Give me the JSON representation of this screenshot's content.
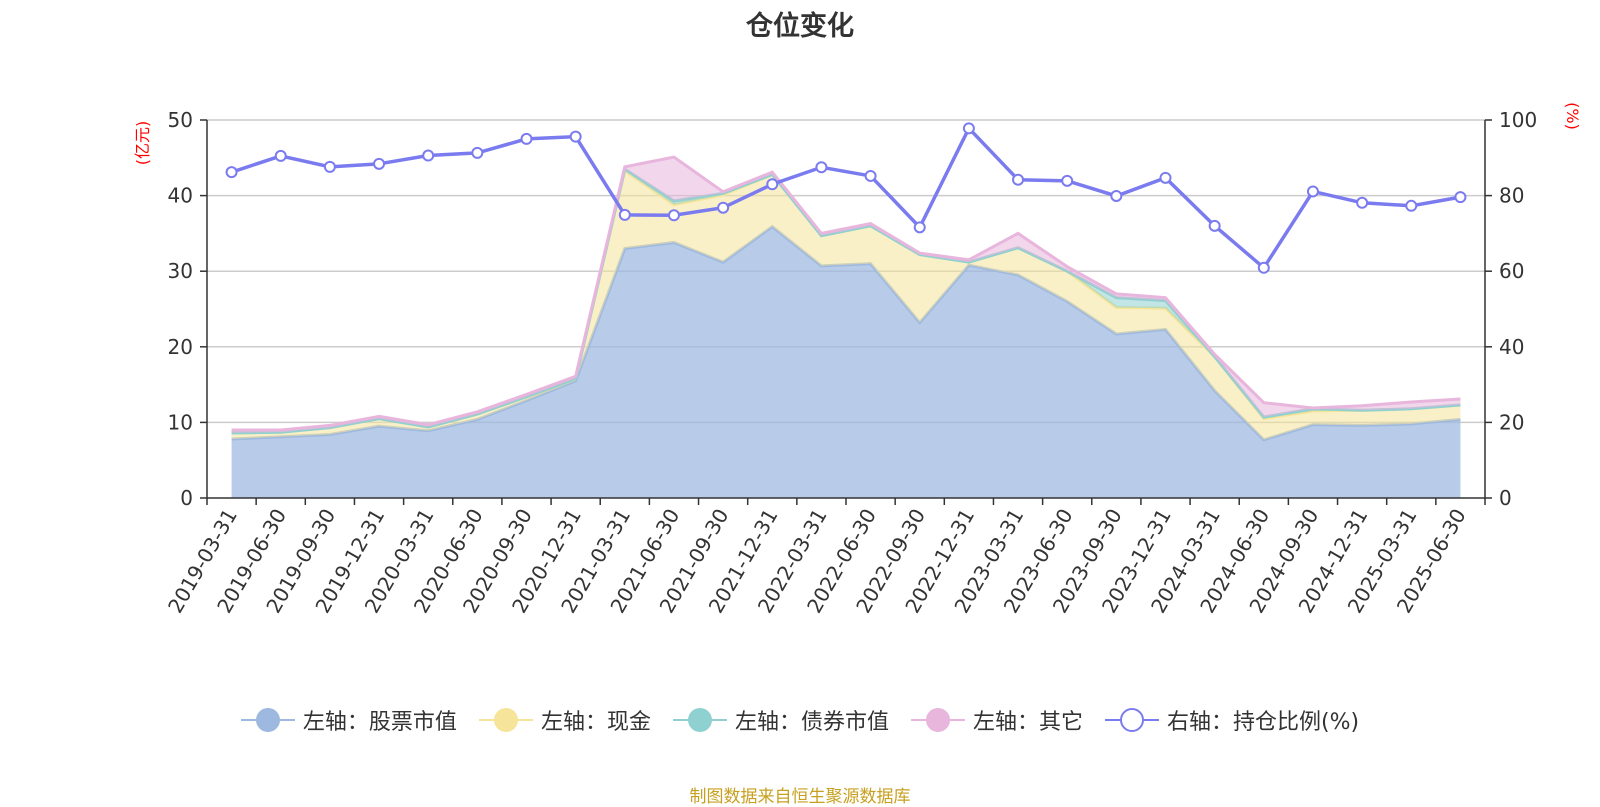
{
  "chart_data": {
    "type": "area",
    "title": "仓位变化",
    "left_axis_unit": "(亿元)",
    "right_axis_unit": "(%)",
    "left_ylim": [
      0,
      50
    ],
    "left_ticks": [
      0,
      10,
      20,
      30,
      40,
      50
    ],
    "right_ylim": [
      0,
      100
    ],
    "right_ticks": [
      0,
      20,
      40,
      60,
      80,
      100
    ],
    "grid": true,
    "legend_position": "bottom",
    "categories": [
      "2019-03-31",
      "2019-06-30",
      "2019-09-30",
      "2019-12-31",
      "2020-03-31",
      "2020-06-30",
      "2020-09-30",
      "2020-12-31",
      "2021-03-31",
      "2021-06-30",
      "2021-09-30",
      "2021-12-31",
      "2022-03-31",
      "2022-06-30",
      "2022-09-30",
      "2022-12-31",
      "2023-03-31",
      "2023-06-30",
      "2023-09-30",
      "2023-12-31",
      "2024-03-31",
      "2024-06-30",
      "2024-09-30",
      "2024-12-31",
      "2025-03-31",
      "2025-06-30"
    ],
    "series": [
      {
        "name": "左轴：股票市值",
        "axis": "left",
        "kind": "stacked-area",
        "color": "#9db9e0",
        "values": [
          7.8,
          8.1,
          8.4,
          9.5,
          8.9,
          10.4,
          12.9,
          15.5,
          33.0,
          33.8,
          31.2,
          35.9,
          30.7,
          31.0,
          23.2,
          30.8,
          29.5,
          26.0,
          21.7,
          22.3,
          14.2,
          7.7,
          9.7,
          9.6,
          9.8,
          10.4
        ]
      },
      {
        "name": "左轴：现金",
        "axis": "left",
        "kind": "stacked-area",
        "color": "#f5e49a",
        "values": [
          0.8,
          0.6,
          0.9,
          1.0,
          0.5,
          0.7,
          0.5,
          0.3,
          10.3,
          5.0,
          8.9,
          6.9,
          4.0,
          5.0,
          9.0,
          0.4,
          3.6,
          4.0,
          3.5,
          2.8,
          4.5,
          2.8,
          1.8,
          2.0,
          2.0,
          1.9
        ]
      },
      {
        "name": "左轴：债券市值",
        "axis": "left",
        "kind": "stacked-area",
        "color": "#8fd1d0",
        "values": [
          0,
          0,
          0,
          0,
          0,
          0,
          0,
          0,
          0.2,
          0.5,
          0.2,
          0,
          0,
          0,
          0,
          0,
          0,
          0,
          1.3,
          1.0,
          0,
          0.2,
          0.3,
          0,
          0,
          0
        ]
      },
      {
        "name": "左轴：其它",
        "axis": "left",
        "kind": "stacked-area",
        "color": "#e8b5dc",
        "values": [
          0.4,
          0.3,
          0.3,
          0.3,
          0.3,
          0.3,
          0.3,
          0.3,
          0.3,
          5.8,
          0.2,
          0.3,
          0.3,
          0.3,
          0.2,
          0.3,
          1.9,
          0.6,
          0.5,
          0.4,
          0.3,
          1.9,
          0.1,
          0.6,
          0.9,
          0.8
        ]
      },
      {
        "name": "右轴：持仓比例(%)",
        "axis": "right",
        "kind": "line",
        "color": "#7b7bf0",
        "values": [
          86.2,
          90.5,
          87.6,
          88.4,
          90.6,
          91.3,
          95.0,
          95.6,
          74.9,
          74.8,
          76.8,
          83.0,
          87.5,
          85.2,
          71.6,
          97.8,
          84.2,
          83.9,
          79.9,
          84.7,
          72.0,
          60.9,
          81.1,
          78.1,
          77.3,
          79.6
        ]
      }
    ]
  },
  "footer": {
    "source": "制图数据来自恒生聚源数据库"
  }
}
